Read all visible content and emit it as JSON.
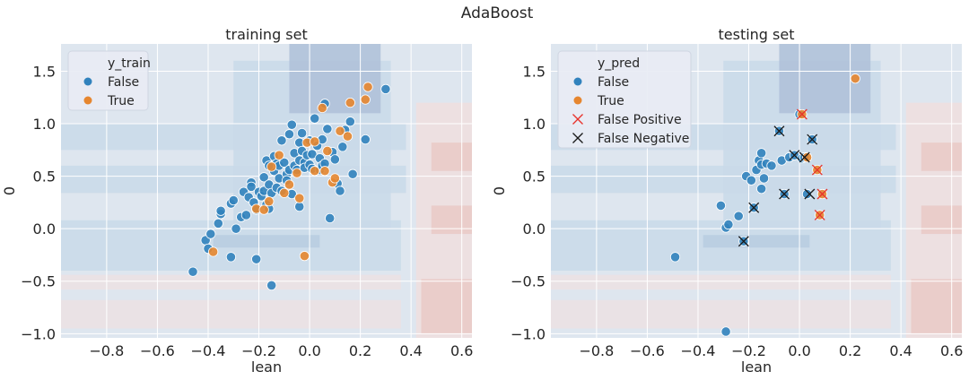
{
  "figure": {
    "suptitle": "AdaBoost"
  },
  "colors": {
    "false": "#3182bd",
    "true": "#e6862f",
    "fp_marker": "#e8322b",
    "fn_marker": "#1a1a1a",
    "grid": "#ffffff",
    "axes_bg": "#e5e9f2"
  },
  "chart_data": [
    {
      "type": "scatter",
      "title": "training set",
      "xlabel": "lean",
      "ylabel": "0",
      "xlim": [
        -0.98,
        0.64
      ],
      "ylim": [
        -1.04,
        1.76
      ],
      "xticks": [
        -0.8,
        -0.6,
        -0.4,
        -0.2,
        0.0,
        0.2,
        0.4,
        0.6
      ],
      "xtick_labels": [
        "−0.8",
        "−0.6",
        "−0.4",
        "−0.2",
        "0.0",
        "0.2",
        "0.4",
        "0.6"
      ],
      "yticks": [
        -1.0,
        -0.5,
        0.0,
        0.5,
        1.0,
        1.5
      ],
      "ytick_labels": [
        "−1.0",
        "−0.5",
        "0.0",
        "0.5",
        "1.0",
        "1.5"
      ],
      "grid": true,
      "legend": {
        "placement": "top-left",
        "title": "y_train",
        "entries": [
          {
            "label": "False",
            "marker": "dot",
            "color": "#3182bd"
          },
          {
            "label": "True",
            "marker": "dot",
            "color": "#e6862f"
          }
        ]
      },
      "series": [
        {
          "name": "False",
          "points": [
            [
              -0.46,
              -0.41
            ],
            [
              -0.41,
              -0.11
            ],
            [
              -0.4,
              -0.19
            ],
            [
              -0.39,
              -0.05
            ],
            [
              -0.36,
              0.05
            ],
            [
              -0.35,
              0.14
            ],
            [
              -0.35,
              0.17
            ],
            [
              -0.31,
              -0.27
            ],
            [
              -0.31,
              0.24
            ],
            [
              -0.3,
              0.27
            ],
            [
              -0.29,
              0.0
            ],
            [
              -0.27,
              0.11
            ],
            [
              -0.26,
              0.35
            ],
            [
              -0.25,
              0.13
            ],
            [
              -0.24,
              0.3
            ],
            [
              -0.23,
              0.44
            ],
            [
              -0.23,
              0.4
            ],
            [
              -0.22,
              0.25
            ],
            [
              -0.21,
              0.18
            ],
            [
              -0.21,
              -0.29
            ],
            [
              -0.2,
              0.35
            ],
            [
              -0.19,
              0.31
            ],
            [
              -0.18,
              0.49
            ],
            [
              -0.18,
              0.36
            ],
            [
              -0.17,
              0.65
            ],
            [
              -0.17,
              0.23
            ],
            [
              -0.16,
              0.42
            ],
            [
              -0.16,
              0.19
            ],
            [
              -0.15,
              0.34
            ],
            [
              -0.15,
              -0.54
            ],
            [
              -0.14,
              0.69
            ],
            [
              -0.14,
              0.55
            ],
            [
              -0.13,
              0.39
            ],
            [
              -0.13,
              0.62
            ],
            [
              -0.12,
              0.6
            ],
            [
              -0.12,
              0.48
            ],
            [
              -0.11,
              0.36
            ],
            [
              -0.11,
              0.84
            ],
            [
              -0.1,
              0.63
            ],
            [
              -0.09,
              0.52
            ],
            [
              -0.09,
              0.46
            ],
            [
              -0.08,
              0.56
            ],
            [
              -0.07,
              0.99
            ],
            [
              -0.07,
              0.33
            ],
            [
              -0.06,
              0.72
            ],
            [
              -0.06,
              0.6
            ],
            [
              -0.05,
              0.56
            ],
            [
              -0.04,
              0.82
            ],
            [
              -0.04,
              0.65
            ],
            [
              -0.04,
              0.21
            ],
            [
              -0.03,
              0.91
            ],
            [
              -0.03,
              0.74
            ],
            [
              -0.02,
              0.63
            ],
            [
              -0.02,
              0.58
            ],
            [
              -0.01,
              0.7
            ],
            [
              0.0,
              0.84
            ],
            [
              0.0,
              0.61
            ],
            [
              0.01,
              0.71
            ],
            [
              0.01,
              0.57
            ],
            [
              0.02,
              1.05
            ],
            [
              0.03,
              0.79
            ],
            [
              0.04,
              0.67
            ],
            [
              0.04,
              0.56
            ],
            [
              0.05,
              0.6
            ],
            [
              0.05,
              0.85
            ],
            [
              0.06,
              1.19
            ],
            [
              0.06,
              0.62
            ],
            [
              0.07,
              0.95
            ],
            [
              0.08,
              0.1
            ],
            [
              0.09,
              0.73
            ],
            [
              0.1,
              0.66
            ],
            [
              0.11,
              0.43
            ],
            [
              0.12,
              0.36
            ],
            [
              0.13,
              0.78
            ],
            [
              0.14,
              0.94
            ],
            [
              0.16,
              1.02
            ],
            [
              0.17,
              0.52
            ],
            [
              0.22,
              0.85
            ],
            [
              0.3,
              1.33
            ],
            [
              -0.16,
              0.6
            ],
            [
              -0.08,
              0.9
            ]
          ]
        },
        {
          "name": "True",
          "points": [
            [
              -0.38,
              -0.22
            ],
            [
              -0.21,
              0.19
            ],
            [
              -0.18,
              0.18
            ],
            [
              -0.16,
              0.26
            ],
            [
              -0.15,
              0.59
            ],
            [
              -0.12,
              0.7
            ],
            [
              -0.1,
              0.34
            ],
            [
              -0.08,
              0.42
            ],
            [
              -0.05,
              0.53
            ],
            [
              -0.04,
              0.29
            ],
            [
              -0.02,
              -0.26
            ],
            [
              -0.01,
              0.82
            ],
            [
              0.02,
              0.83
            ],
            [
              0.05,
              1.15
            ],
            [
              0.06,
              0.55
            ],
            [
              0.07,
              0.74
            ],
            [
              0.09,
              0.44
            ],
            [
              0.1,
              0.48
            ],
            [
              0.12,
              0.93
            ],
            [
              0.15,
              0.88
            ],
            [
              0.16,
              1.2
            ],
            [
              0.22,
              1.23
            ],
            [
              0.23,
              1.35
            ],
            [
              0.02,
              0.55
            ]
          ]
        }
      ]
    },
    {
      "type": "scatter",
      "title": "testing set",
      "xlabel": "lean",
      "ylabel": "0",
      "xlim": [
        -0.98,
        0.64
      ],
      "ylim": [
        -1.04,
        1.76
      ],
      "xticks": [
        -0.8,
        -0.6,
        -0.4,
        -0.2,
        0.0,
        0.2,
        0.4,
        0.6
      ],
      "xtick_labels": [
        "−0.8",
        "−0.6",
        "−0.4",
        "−0.2",
        "0.0",
        "0.2",
        "0.4",
        "0.6"
      ],
      "yticks": [
        -1.0,
        -0.5,
        0.0,
        0.5,
        1.0,
        1.5
      ],
      "ytick_labels": [
        "−1.0",
        "−0.5",
        "0.0",
        "0.5",
        "1.0",
        "1.5"
      ],
      "grid": true,
      "legend": {
        "placement": "top-left",
        "title": "y_pred",
        "entries": [
          {
            "label": "False",
            "marker": "dot",
            "color": "#3182bd"
          },
          {
            "label": "True",
            "marker": "dot",
            "color": "#e6862f"
          },
          {
            "label": "False Positive",
            "marker": "x",
            "color": "#e8322b"
          },
          {
            "label": "False Negative",
            "marker": "x",
            "color": "#1a1a1a"
          }
        ]
      },
      "series": [
        {
          "name": "False",
          "points": [
            [
              -0.49,
              -0.27
            ],
            [
              -0.31,
              0.22
            ],
            [
              -0.29,
              -0.98
            ],
            [
              -0.29,
              0.01
            ],
            [
              -0.28,
              0.04
            ],
            [
              -0.24,
              0.12
            ],
            [
              -0.22,
              -0.12
            ],
            [
              -0.21,
              0.5
            ],
            [
              -0.19,
              0.46
            ],
            [
              -0.18,
              0.2
            ],
            [
              -0.17,
              0.56
            ],
            [
              -0.16,
              0.65
            ],
            [
              -0.15,
              0.72
            ],
            [
              -0.15,
              0.61
            ],
            [
              -0.14,
              0.48
            ],
            [
              -0.15,
              0.38
            ],
            [
              -0.13,
              0.62
            ],
            [
              -0.11,
              0.6
            ],
            [
              -0.08,
              0.93
            ],
            [
              -0.07,
              0.65
            ],
            [
              -0.06,
              0.33
            ],
            [
              -0.04,
              0.68
            ],
            [
              -0.02,
              0.7
            ],
            [
              0.0,
              1.09
            ],
            [
              0.01,
              0.67
            ],
            [
              0.03,
              0.33
            ],
            [
              0.05,
              0.85
            ],
            [
              0.02,
              0.68
            ]
          ]
        },
        {
          "name": "True",
          "points": [
            [
              0.01,
              1.09
            ],
            [
              0.03,
              0.68
            ],
            [
              0.07,
              0.56
            ],
            [
              0.09,
              0.33
            ],
            [
              0.08,
              0.13
            ],
            [
              0.22,
              1.43
            ]
          ]
        },
        {
          "name": "False Positive",
          "points": [
            [
              0.01,
              1.09
            ],
            [
              0.07,
              0.56
            ],
            [
              0.09,
              0.33
            ],
            [
              0.08,
              0.13
            ]
          ]
        },
        {
          "name": "False Negative",
          "points": [
            [
              -0.22,
              -0.12
            ],
            [
              -0.18,
              0.2
            ],
            [
              -0.08,
              0.93
            ],
            [
              -0.06,
              0.33
            ],
            [
              -0.02,
              0.7
            ],
            [
              0.02,
              0.68
            ],
            [
              0.04,
              0.33
            ],
            [
              0.05,
              0.85
            ]
          ]
        }
      ]
    }
  ]
}
